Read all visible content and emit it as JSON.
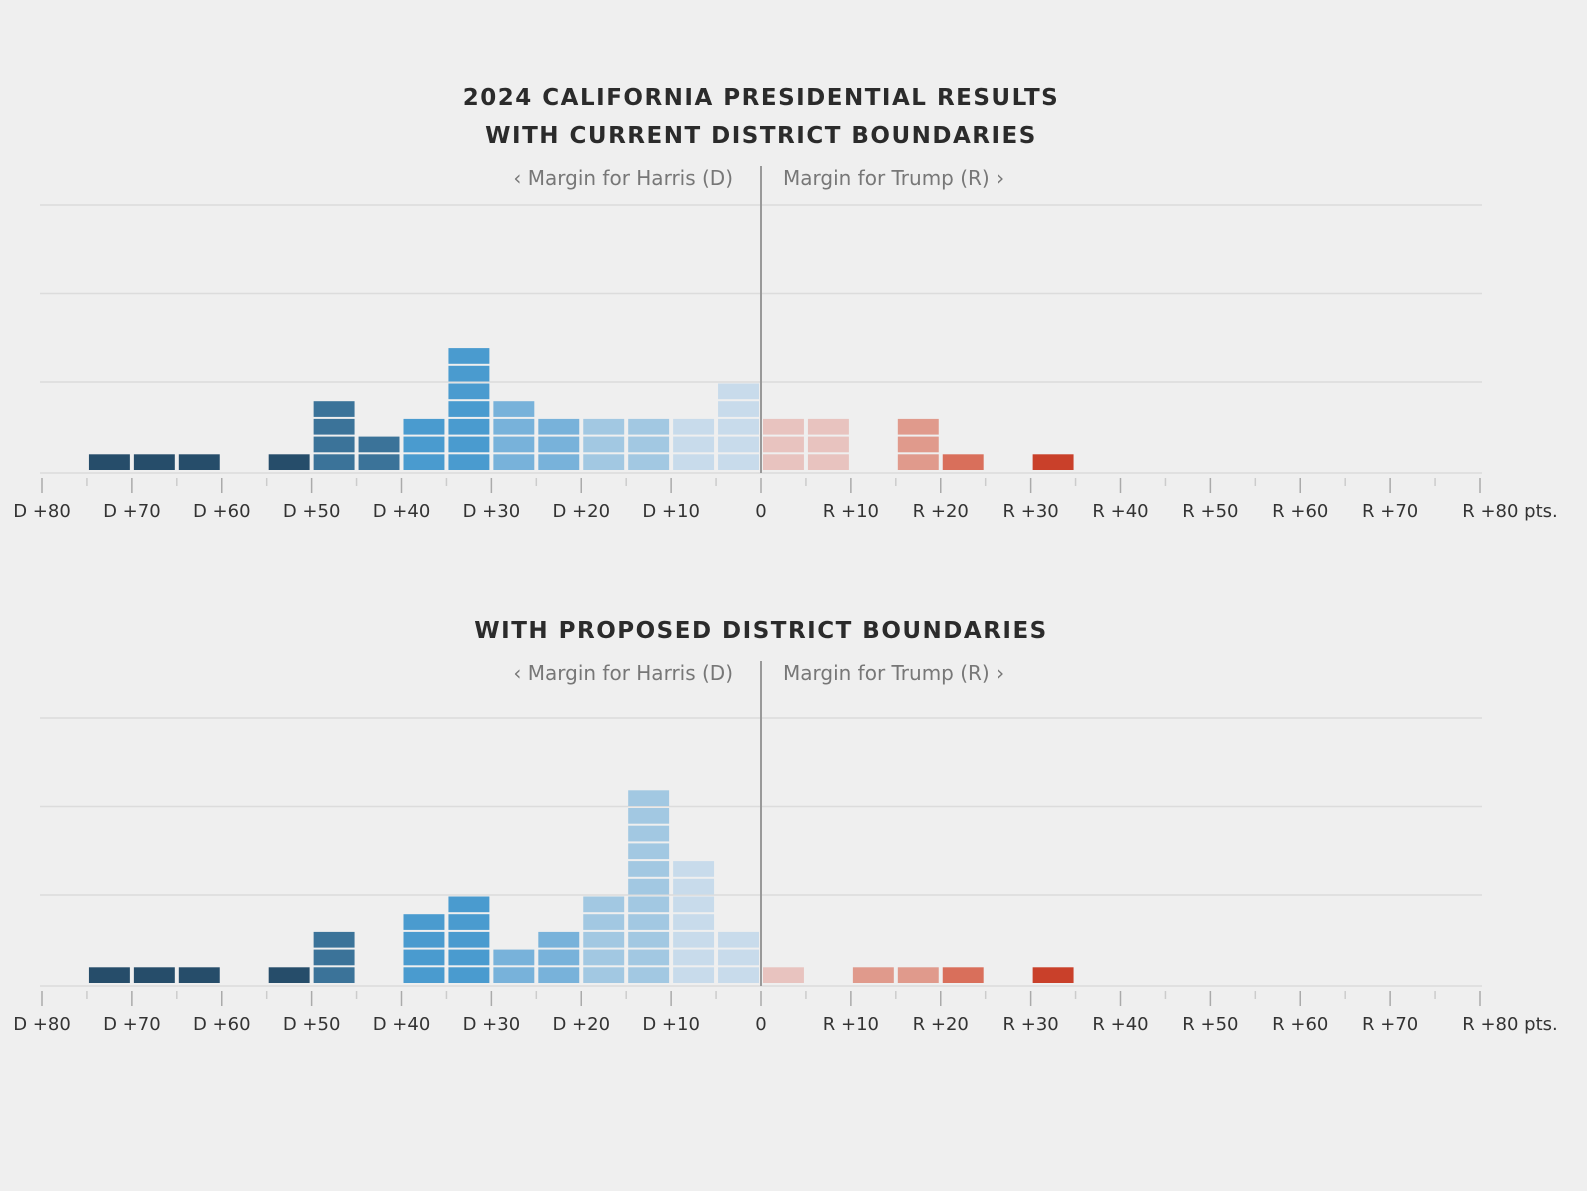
{
  "chart_data": [
    {
      "type": "bar",
      "subtype": "stacked-unit-histogram",
      "title_lines": [
        "2024 CALIFORNIA PRESIDENTIAL RESULTS",
        "WITH CURRENT DISTRICT BOUNDARIES"
      ],
      "left_label": "‹ Margin for Harris (D)",
      "right_label": "Margin for Trump (R) ›",
      "xlim": [
        -80,
        80
      ],
      "ylim": [
        0,
        15
      ],
      "grid": true,
      "bin_width": 5,
      "bins": [
        {
          "from": -75,
          "to": -70,
          "count": 1
        },
        {
          "from": -70,
          "to": -65,
          "count": 1
        },
        {
          "from": -65,
          "to": -60,
          "count": 1
        },
        {
          "from": -55,
          "to": -50,
          "count": 1
        },
        {
          "from": -50,
          "to": -45,
          "count": 4
        },
        {
          "from": -45,
          "to": -40,
          "count": 2
        },
        {
          "from": -40,
          "to": -35,
          "count": 3
        },
        {
          "from": -35,
          "to": -30,
          "count": 7
        },
        {
          "from": -30,
          "to": -25,
          "count": 4
        },
        {
          "from": -25,
          "to": -20,
          "count": 3
        },
        {
          "from": -20,
          "to": -15,
          "count": 3
        },
        {
          "from": -15,
          "to": -10,
          "count": 3
        },
        {
          "from": -10,
          "to": -5,
          "count": 3
        },
        {
          "from": -5,
          "to": 0,
          "count": 5
        },
        {
          "from": 0,
          "to": 5,
          "count": 3
        },
        {
          "from": 5,
          "to": 10,
          "count": 3
        },
        {
          "from": 15,
          "to": 20,
          "count": 3
        },
        {
          "from": 20,
          "to": 25,
          "count": 1
        },
        {
          "from": 30,
          "to": 35,
          "count": 1
        }
      ]
    },
    {
      "type": "bar",
      "subtype": "stacked-unit-histogram",
      "title_lines": [
        "WITH PROPOSED DISTRICT BOUNDARIES"
      ],
      "left_label": "‹ Margin for Harris (D)",
      "right_label": "Margin for Trump (R) ›",
      "xlim": [
        -80,
        80
      ],
      "ylim": [
        0,
        15
      ],
      "grid": true,
      "bin_width": 5,
      "bins": [
        {
          "from": -75,
          "to": -70,
          "count": 1
        },
        {
          "from": -70,
          "to": -65,
          "count": 1
        },
        {
          "from": -65,
          "to": -60,
          "count": 1
        },
        {
          "from": -55,
          "to": -50,
          "count": 1
        },
        {
          "from": -50,
          "to": -45,
          "count": 3
        },
        {
          "from": -40,
          "to": -35,
          "count": 4
        },
        {
          "from": -35,
          "to": -30,
          "count": 5
        },
        {
          "from": -30,
          "to": -25,
          "count": 2
        },
        {
          "from": -25,
          "to": -20,
          "count": 3
        },
        {
          "from": -20,
          "to": -15,
          "count": 5
        },
        {
          "from": -15,
          "to": -10,
          "count": 11
        },
        {
          "from": -10,
          "to": -5,
          "count": 7
        },
        {
          "from": -5,
          "to": 0,
          "count": 3
        },
        {
          "from": 0,
          "to": 5,
          "count": 1
        },
        {
          "from": 10,
          "to": 15,
          "count": 1
        },
        {
          "from": 15,
          "to": 20,
          "count": 1
        },
        {
          "from": 20,
          "to": 25,
          "count": 1
        },
        {
          "from": 30,
          "to": 35,
          "count": 1
        }
      ]
    }
  ],
  "x_tick_labels": [
    "D +80",
    "D +70",
    "D +60",
    "D +50",
    "D +40",
    "D +30",
    "D +20",
    "D +10",
    "0",
    "R +10",
    "R +20",
    "R +30",
    "R +40",
    "R +50",
    "R +60",
    "R +70",
    "R +80 pts."
  ],
  "colors": {
    "dem": {
      "50+": "#264d6a",
      "40-50": "#3b7399",
      "30-40": "#4a9bcf",
      "20-30": "#78b2da",
      "10-20": "#a2c8e2",
      "0-10": "#c8dbeb"
    },
    "rep": {
      "0-10": "#e8c3bf",
      "10-20": "#e09a8c",
      "20-30": "#d96f5b",
      "30+": "#c9402a"
    },
    "background": "#efefef",
    "grid": "#dcdcdc",
    "zero_line": "#999999"
  }
}
